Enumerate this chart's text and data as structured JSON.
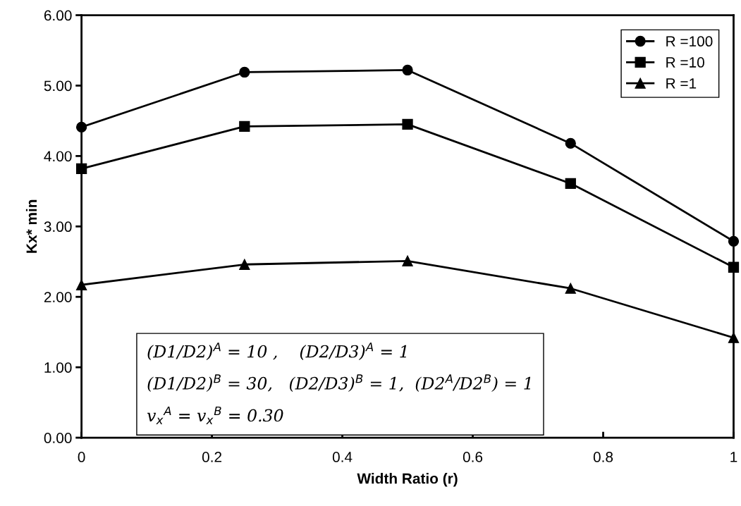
{
  "chart_data": {
    "type": "line",
    "xlabel": "Width Ratio (r)",
    "ylabel": "Kx* min",
    "x": [
      0,
      0.25,
      0.5,
      0.75,
      1
    ],
    "series": [
      {
        "name": "R =100",
        "color": "#000000",
        "marker": "circle",
        "values": [
          4.41,
          5.19,
          5.22,
          4.18,
          2.79
        ]
      },
      {
        "name": "R =10",
        "color": "#000000",
        "marker": "square",
        "values": [
          3.82,
          4.42,
          4.45,
          3.61,
          2.42
        ]
      },
      {
        "name": "R =1",
        "color": "#000000",
        "marker": "triangle",
        "values": [
          2.17,
          2.46,
          2.51,
          2.12,
          1.42
        ]
      }
    ],
    "xlim": [
      0,
      1
    ],
    "xticks": [
      0,
      {
        "value": 0.2,
        "label": "0.2"
      },
      {
        "value": 0.4,
        "label": "0.4"
      },
      {
        "value": 0.6,
        "label": "0.6"
      },
      {
        "value": 0.8,
        "label": "0.8"
      },
      1
    ],
    "ylim": [
      0,
      6
    ],
    "yticks": [
      {
        "value": 0,
        "label": "0.00"
      },
      {
        "value": 1,
        "label": "1.00"
      },
      {
        "value": 2,
        "label": "2.00"
      },
      {
        "value": 3,
        "label": "3.00"
      },
      {
        "value": 4,
        "label": "4.00"
      },
      {
        "value": 5,
        "label": "5.00"
      },
      {
        "value": 6,
        "label": "6.00"
      }
    ],
    "grid": false,
    "legend": "top right",
    "line_style": "solid",
    "annotations": [
      "(D1/D2)$^{A}$ = 10 ,    (D2/D3)$^{A}$ = 1\n(D1/D2)$^{B}$ = 30,   (D2/D3)$^{B}$ = 1,  (D2$^{A}$/D2$^{B}$) = 1\nv$_{x}$$^{A}$ = v$_{x}$$^{B}$ = 0.30"
    ]
  }
}
